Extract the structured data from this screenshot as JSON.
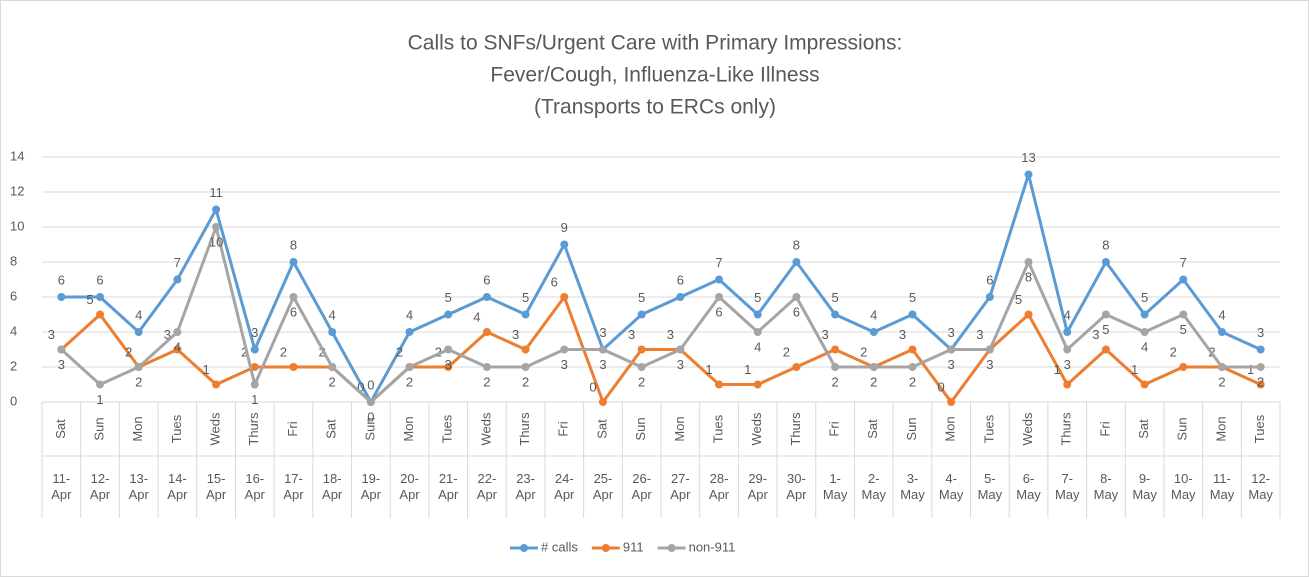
{
  "chart_data": {
    "type": "line",
    "title": [
      "Calls to SNFs/Urgent Care with Primary Impressions:",
      "Fever/Cough, Influenza-Like Illness",
      "(Transports to ERCs only)"
    ],
    "categories": [
      "Sat",
      "Sun",
      "Mon",
      "Tues",
      "Weds",
      "Thurs",
      "Fri",
      "Sat",
      "Sun",
      "Mon",
      "Tues",
      "Weds",
      "Thurs",
      "Fri",
      "Sat",
      "Sun",
      "Mon",
      "Tues",
      "Weds",
      "Thurs",
      "Fri",
      "Sat",
      "Sun",
      "Mon",
      "Tues",
      "Weds",
      "Thurs",
      "Fri",
      "Sat",
      "Sun",
      "Mon",
      "Tues"
    ],
    "dates": [
      "11-Apr",
      "12-Apr",
      "13-Apr",
      "14-Apr",
      "15-Apr",
      "16-Apr",
      "17-Apr",
      "18-Apr",
      "19-Apr",
      "20-Apr",
      "21-Apr",
      "22-Apr",
      "23-Apr",
      "24-Apr",
      "25-Apr",
      "26-Apr",
      "27-Apr",
      "28-Apr",
      "29-Apr",
      "30-Apr",
      "1-May",
      "2-May",
      "3-May",
      "4-May",
      "5-May",
      "6-May",
      "7-May",
      "8-May",
      "9-May",
      "10-May",
      "11-May",
      "12-May"
    ],
    "series": [
      {
        "name": "# calls",
        "color": "#5b9bd5",
        "values": [
          6,
          6,
          4,
          7,
          11,
          3,
          8,
          4,
          0,
          4,
          5,
          6,
          5,
          9,
          3,
          5,
          6,
          7,
          5,
          8,
          5,
          4,
          5,
          3,
          6,
          13,
          4,
          8,
          5,
          7,
          4,
          3
        ]
      },
      {
        "name": "911",
        "color": "#ed7d31",
        "values": [
          3,
          5,
          2,
          3,
          1,
          2,
          2,
          2,
          0,
          2,
          2,
          4,
          3,
          6,
          0,
          3,
          3,
          1,
          1,
          2,
          3,
          2,
          3,
          0,
          3,
          5,
          1,
          3,
          1,
          2,
          2,
          1
        ]
      },
      {
        "name": "non-911",
        "color": "#a5a5a5",
        "values": [
          3,
          1,
          2,
          4,
          10,
          1,
          6,
          2,
          0,
          2,
          3,
          2,
          2,
          3,
          3,
          2,
          3,
          6,
          4,
          6,
          2,
          2,
          2,
          3,
          3,
          8,
          3,
          5,
          4,
          5,
          2,
          2
        ]
      }
    ],
    "ylim": [
      0,
      14
    ],
    "yticks": [
      0,
      2,
      4,
      6,
      8,
      10,
      12,
      14
    ],
    "grid": true,
    "legend": "bottom"
  }
}
